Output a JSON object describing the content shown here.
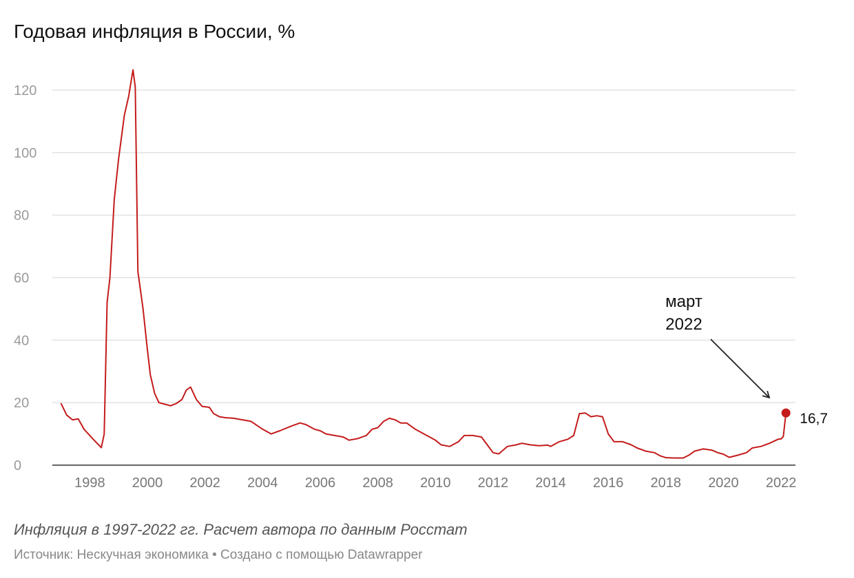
{
  "title": "Годовая инфляция в России, %",
  "note": "Инфляция в 1997-2022 гг. Расчет автора по данным Росстат",
  "source": "Источник: Нескучная экономика • Создано с помощью Datawrapper",
  "colors": {
    "series": "#c41a1a",
    "grid": "#e2e2e2"
  },
  "chart_data": {
    "type": "line",
    "title": "Годовая инфляция в России, %",
    "ylim": [
      0,
      120
    ],
    "xlim": [
      1996.7,
      2022.5
    ],
    "grid": true,
    "yticks": [
      "0",
      "20",
      "40",
      "60",
      "80",
      "100",
      "120"
    ],
    "xticks": [
      "1998",
      "2000",
      "2002",
      "2004",
      "2006",
      "2008",
      "2010",
      "2012",
      "2014",
      "2016",
      "2018",
      "2020",
      "2022"
    ],
    "series": [
      {
        "x": [
          1997.0,
          1997.2,
          1997.4,
          1997.6,
          1997.8,
          1998.0,
          1998.2,
          1998.4,
          1998.5,
          1998.6,
          1998.7,
          1998.85,
          1999.0,
          1999.1,
          1999.2,
          1999.35,
          1999.5,
          1999.58,
          1999.67,
          1999.85,
          2000.0,
          2000.1,
          2000.25,
          2000.4,
          2000.6,
          2000.8,
          2001.0,
          2001.2,
          2001.35,
          2001.5,
          2001.7,
          2001.9,
          2002.0,
          2002.15,
          2002.3,
          2002.5,
          2002.7,
          2003.0,
          2003.3,
          2003.6,
          2004.0,
          2004.3,
          2004.6,
          2005.0,
          2005.3,
          2005.5,
          2005.8,
          2006.0,
          2006.2,
          2006.5,
          2006.8,
          2007.0,
          2007.3,
          2007.6,
          2007.8,
          2008.0,
          2008.2,
          2008.4,
          2008.6,
          2008.8,
          2009.0,
          2009.3,
          2009.6,
          2009.8,
          2010.0,
          2010.2,
          2010.5,
          2010.8,
          2011.0,
          2011.3,
          2011.6,
          2011.8,
          2012.0,
          2012.2,
          2012.5,
          2012.8,
          2013.0,
          2013.3,
          2013.6,
          2013.9,
          2014.0,
          2014.3,
          2014.6,
          2014.8,
          2015.0,
          2015.2,
          2015.4,
          2015.6,
          2015.8,
          2016.0,
          2016.2,
          2016.5,
          2016.8,
          2017.0,
          2017.3,
          2017.6,
          2017.8,
          2018.0,
          2018.3,
          2018.6,
          2018.8,
          2019.0,
          2019.3,
          2019.6,
          2019.8,
          2020.0,
          2020.2,
          2020.5,
          2020.8,
          2021.0,
          2021.3,
          2021.6,
          2021.9,
          2022.0,
          2022.08,
          2022.17
        ],
        "y": [
          19.8,
          16,
          14.5,
          14.8,
          11.5,
          9.5,
          7.5,
          5.6,
          10,
          52,
          60,
          85,
          98,
          105,
          112,
          118,
          126.5,
          121,
          62,
          50,
          37,
          29,
          23,
          20,
          19.5,
          19,
          19.7,
          21,
          24,
          25,
          21,
          18.8,
          18.7,
          18.5,
          16.5,
          15.5,
          15.2,
          15,
          14.5,
          14,
          11.5,
          10,
          11,
          12.5,
          13.5,
          13,
          11.5,
          11,
          10,
          9.5,
          9,
          8,
          8.5,
          9.5,
          11.5,
          12,
          14,
          15,
          14.5,
          13.5,
          13.5,
          11.5,
          10,
          9,
          8,
          6.5,
          6,
          7.5,
          9.5,
          9.5,
          9,
          6.5,
          4,
          3.6,
          6,
          6.5,
          7,
          6.5,
          6.2,
          6.4,
          6.0,
          7.5,
          8.3,
          9.5,
          16.5,
          16.7,
          15.5,
          15.8,
          15.5,
          10,
          7.5,
          7.5,
          6.5,
          5.5,
          4.5,
          4,
          3,
          2.4,
          2.3,
          2.3,
          3.2,
          4.5,
          5.2,
          4.8,
          4,
          3.5,
          2.5,
          3.2,
          4,
          5.5,
          6,
          7,
          8.3,
          8.4,
          9.2,
          16.7
        ]
      }
    ],
    "annotation": {
      "text_line1": "март",
      "text_line2": "2022"
    },
    "last_value_label": "16,7"
  }
}
